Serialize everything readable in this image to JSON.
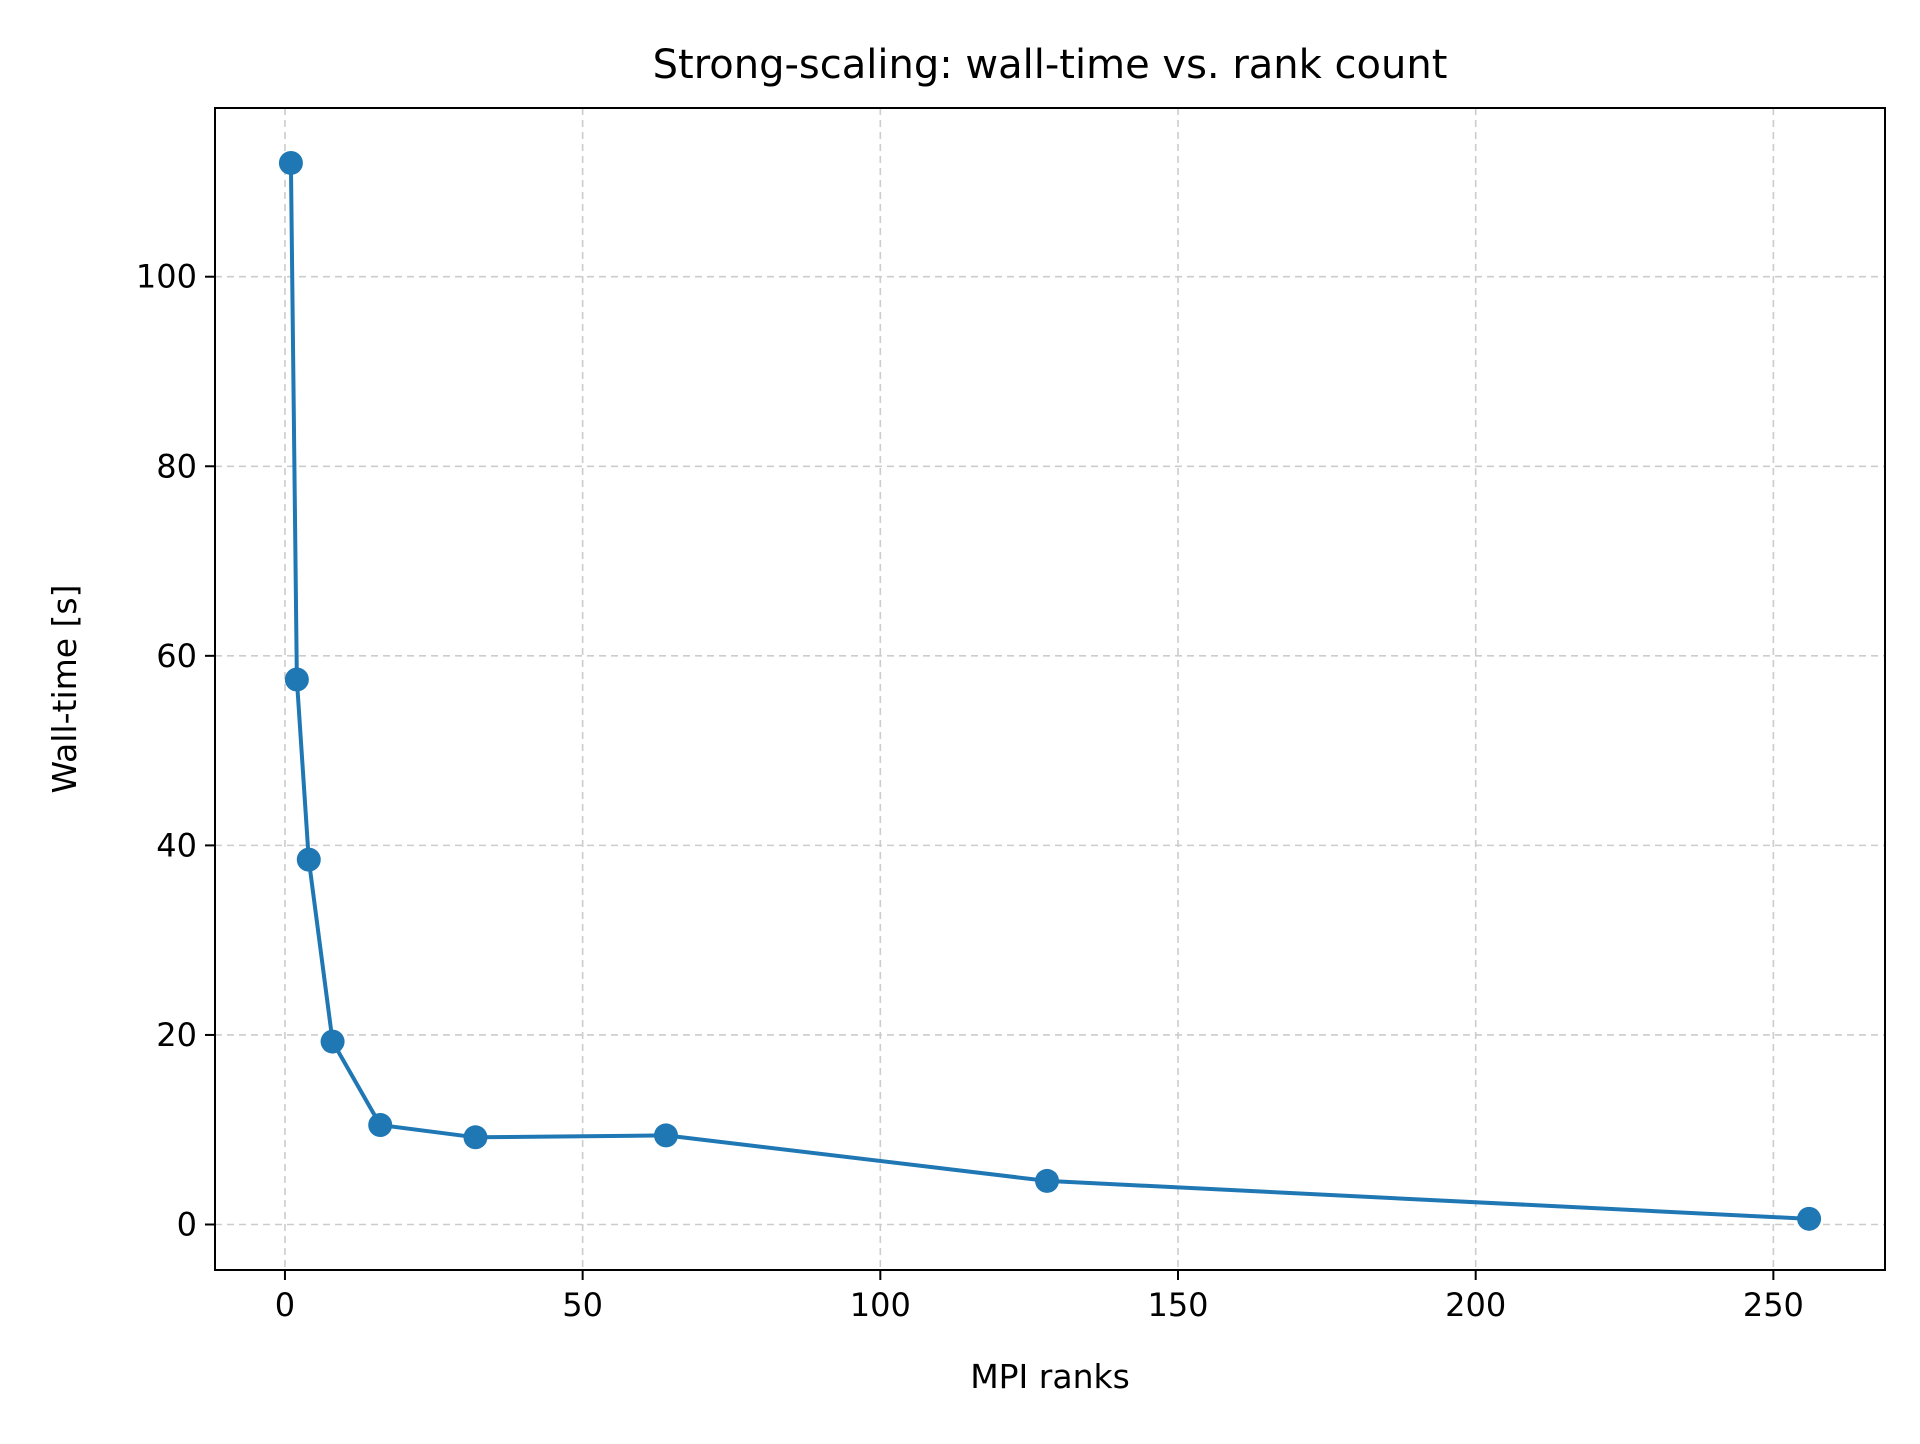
{
  "chart_data": {
    "type": "line",
    "title": "Strong-scaling: wall-time vs. rank count",
    "xlabel": "MPI ranks",
    "ylabel": "Wall-time [s]",
    "xlim": [
      -11.75,
      268.75
    ],
    "ylim": [
      -4.8,
      117.8
    ],
    "xticks": [
      0,
      50,
      100,
      150,
      200,
      250
    ],
    "yticks": [
      0,
      20,
      40,
      60,
      80,
      100
    ],
    "grid": true,
    "grid_style": "dashed",
    "legend": false,
    "series": [
      {
        "color": "#1f77b4",
        "marker": "circle",
        "x": [
          1,
          2,
          4,
          8,
          16,
          32,
          64,
          128,
          256
        ],
        "y": [
          112.0,
          57.5,
          38.5,
          19.3,
          10.5,
          9.2,
          9.4,
          4.6,
          0.6
        ]
      }
    ]
  }
}
